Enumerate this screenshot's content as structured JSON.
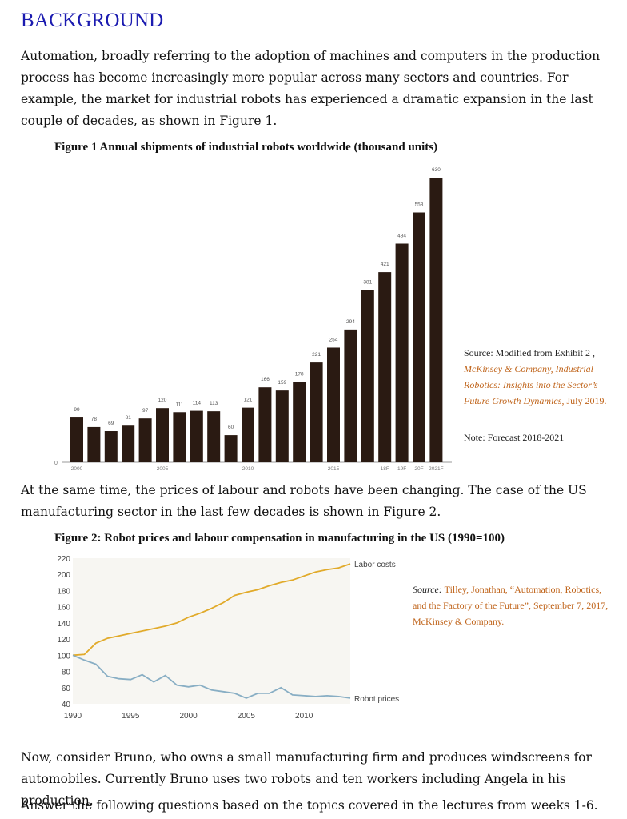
{
  "heading": "BACKGROUND",
  "para1": "Automation, broadly referring to the adoption of machines and computers in the production process has become increasingly more popular across many sectors and countries. For example, the market for industrial robots has experienced a dramatic expansion in the last couple of decades, as shown in Figure 1.",
  "figure1": {
    "title": "Figure 1 Annual shipments of industrial robots worldwide (thousand units)",
    "source_prefix": "Source: Modified from Exhibit 2 ,",
    "source_italic": "McKinsey & Company, Industrial Robotics: Insights into the Sector’s Future Growth Dynamics",
    "source_date": ", July 2019.",
    "note": "Note: Forecast 2018-2021"
  },
  "para2": "At the same time, the prices of labour and robots have been changing. The case of the US manufacturing sector in the last few decades is shown in Figure 2.",
  "figure2": {
    "title": "Figure 2: Robot prices and labour compensation in manufacturing in the US (1990=100)",
    "source_label": "Source:",
    "source_text": "Tilley, Jonathan, “Automation, Robotics, and the Factory of the Future”, September 7, 2017, McKinsey & Company."
  },
  "para3": "Now, consider Bruno, who owns a small manufacturing firm and produces windscreens for automobiles. Currently Bruno uses two robots and ten workers including Angela in his production.",
  "para4": "Answer the following questions based on the topics covered in the lectures from weeks 1-6.",
  "chart_data": [
    {
      "type": "bar",
      "categories": [
        "2000",
        "2001",
        "2002",
        "2003",
        "2004",
        "2005",
        "2006",
        "2007",
        "2008",
        "2009",
        "2010",
        "2011",
        "2012",
        "2013",
        "2014",
        "2015",
        "2016",
        "2017",
        "18F",
        "19F",
        "20F",
        "2021F"
      ],
      "tick_labels": [
        "2000",
        "",
        "",
        "",
        "",
        "2005",
        "",
        "",
        "",
        "",
        "2010",
        "",
        "",
        "",
        "",
        "2015",
        "",
        "",
        "18F",
        "19F",
        "20F",
        "2021F"
      ],
      "values": [
        99,
        78,
        69,
        81,
        97,
        120,
        111,
        114,
        113,
        60,
        121,
        166,
        159,
        178,
        221,
        254,
        294,
        381,
        421,
        484,
        553,
        630
      ],
      "ymin_label": "0",
      "ylim": [
        0,
        630
      ],
      "grid": false,
      "bar_color": "#2a1a12"
    },
    {
      "type": "line",
      "x": [
        1990,
        1991,
        1992,
        1993,
        1994,
        1995,
        1996,
        1997,
        1998,
        1999,
        2000,
        2001,
        2002,
        2003,
        2004,
        2005,
        2006,
        2007,
        2008,
        2009,
        2010,
        2011,
        2012,
        2013,
        2014
      ],
      "xticks": [
        1990,
        1995,
        2000,
        2005,
        2010
      ],
      "yticks": [
        40,
        60,
        80,
        100,
        120,
        140,
        160,
        180,
        200,
        220
      ],
      "ylim": [
        40,
        220
      ],
      "grid": false,
      "series": [
        {
          "name": "Labor costs",
          "color": "#e1aa2a",
          "values": [
            100,
            101,
            115,
            121,
            124,
            127,
            130,
            133,
            136,
            140,
            147,
            152,
            158,
            165,
            174,
            178,
            181,
            186,
            190,
            193,
            198,
            203,
            206,
            208,
            213
          ]
        },
        {
          "name": "Robot prices",
          "color": "#88aec4",
          "values": [
            100,
            94,
            89,
            74,
            71,
            70,
            76,
            67,
            75,
            63,
            61,
            63,
            57,
            55,
            53,
            47,
            53,
            53,
            60,
            51,
            50,
            49,
            50,
            49,
            47
          ]
        }
      ]
    }
  ]
}
